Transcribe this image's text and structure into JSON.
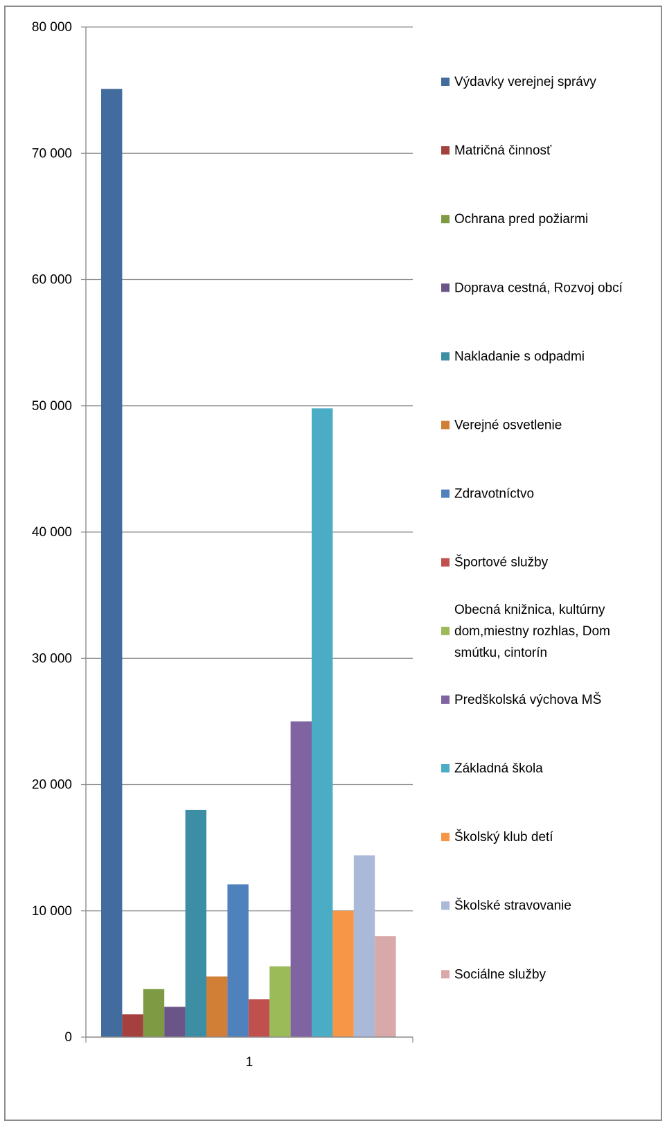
{
  "chart_data": {
    "type": "bar",
    "title": "",
    "xlabel": "",
    "ylabel": "",
    "categories": [
      "1"
    ],
    "ylim": [
      0,
      80000
    ],
    "yticks": [
      0,
      10000,
      20000,
      30000,
      40000,
      50000,
      60000,
      70000,
      80000
    ],
    "ytick_labels": [
      "0",
      "10 000",
      "20 000",
      "30 000",
      "40 000",
      "50 000",
      "60 000",
      "70 000",
      "80 000"
    ],
    "grid": true,
    "legend_position": "right",
    "series": [
      {
        "name": "Výdavky verejnej správy",
        "values": [
          75100
        ],
        "color": "#426b9e"
      },
      {
        "name": "Matričná činnosť",
        "values": [
          1800
        ],
        "color": "#a4403d"
      },
      {
        "name": "Ochrana pred požiarmi",
        "values": [
          3800
        ],
        "color": "#7e9a42"
      },
      {
        "name": "Doprava cestná, Rozvoj obcí",
        "values": [
          2400
        ],
        "color": "#6b5487"
      },
      {
        "name": "Nakladanie s odpadmi",
        "values": [
          18000
        ],
        "color": "#3b8ea3"
      },
      {
        "name": "Verejné osvetlenie",
        "values": [
          4800
        ],
        "color": "#d17e37"
      },
      {
        "name": "Zdravotníctvo",
        "values": [
          12100
        ],
        "color": "#4f81bd"
      },
      {
        "name": "Športové služby",
        "values": [
          3000
        ],
        "color": "#c0504d"
      },
      {
        "name": "Obecná knižnica, kultúrny dom,miestny rozhlas, Dom smútku, cintorín",
        "values": [
          5600
        ],
        "color": "#9bbb59"
      },
      {
        "name": "Predškolská výchova MŠ",
        "values": [
          25000
        ],
        "color": "#8064a2"
      },
      {
        "name": "Základná  škola",
        "values": [
          49800
        ],
        "color": "#4bacc6"
      },
      {
        "name": "Školský klub detí",
        "values": [
          10000
        ],
        "color": "#f79646"
      },
      {
        "name": "Školské stravovanie",
        "values": [
          14400
        ],
        "color": "#aab9d8"
      },
      {
        "name": "Sociálne služby",
        "values": [
          8000
        ],
        "color": "#d9a8a8"
      }
    ]
  }
}
